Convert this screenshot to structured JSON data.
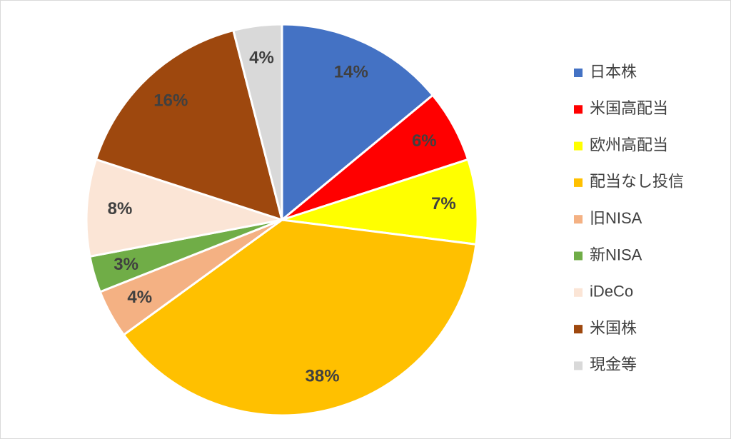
{
  "chart_data": {
    "type": "pie",
    "categories": [
      "日本株",
      "米国高配当",
      "欧州高配当",
      "配当なし投信",
      "旧NISA",
      "新NISA",
      "iDeCo",
      "米国株",
      "現金等"
    ],
    "values": [
      14,
      6,
      7,
      38,
      4,
      3,
      8,
      16,
      4
    ],
    "value_labels": [
      "14%",
      "6%",
      "7%",
      "38%",
      "4%",
      "3%",
      "8%",
      "16%",
      "4%"
    ],
    "colors": [
      "#4472c4",
      "#ff0000",
      "#ffff00",
      "#ffc000",
      "#f4b183",
      "#70ad47",
      "#fbe5d6",
      "#9e480e",
      "#d9d9d9"
    ],
    "legend": "right"
  }
}
